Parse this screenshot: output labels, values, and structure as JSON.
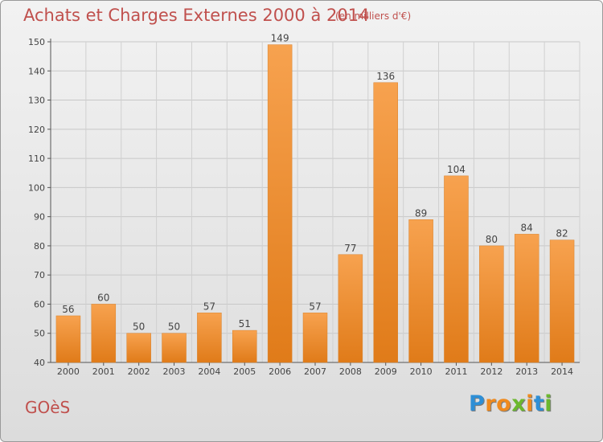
{
  "title": "Achats et Charges Externes 2000 à 2014",
  "subtitle": "(en milliers d'€)",
  "location": "GOèS",
  "logo": {
    "letters": [
      "P",
      "r",
      "o",
      "x",
      "i",
      "t",
      "i"
    ],
    "colors": [
      "#2e8fd6",
      "#f08a1d",
      "#f08a1d",
      "#6bb82e",
      "#f08a1d",
      "#2e8fd6",
      "#6bb82e"
    ]
  },
  "colors": {
    "bar_light": "#f7a24f",
    "bar_dark": "#e07b19",
    "title": "#c0504d"
  },
  "chart_data": {
    "type": "bar",
    "categories": [
      "2000",
      "2001",
      "2002",
      "2003",
      "2004",
      "2005",
      "2006",
      "2007",
      "2008",
      "2009",
      "2010",
      "2011",
      "2012",
      "2013",
      "2014"
    ],
    "values": [
      56,
      60,
      50,
      50,
      57,
      51,
      149,
      57,
      77,
      136,
      89,
      104,
      80,
      84,
      82
    ],
    "ylim": [
      40,
      150
    ],
    "yticks": [
      40,
      50,
      60,
      70,
      80,
      90,
      100,
      110,
      120,
      130,
      140,
      150
    ],
    "grid": true,
    "data_labels": true
  }
}
